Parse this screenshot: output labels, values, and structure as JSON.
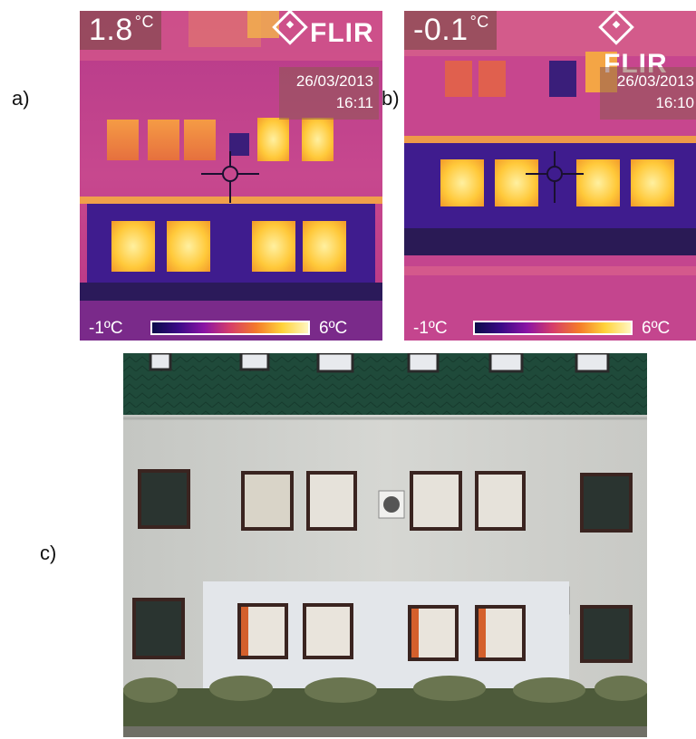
{
  "labels": {
    "a": "a)",
    "b": "b)",
    "c": "c)"
  },
  "thermal_a": {
    "spot_value": "1.8",
    "spot_unit": "°C",
    "brand": "FLIR",
    "date": "26/03/2013",
    "time": "16:11",
    "scale_min": "-1ºC",
    "scale_max": "6ºC"
  },
  "thermal_b": {
    "spot_value": "-0.1",
    "spot_unit": "°C",
    "brand": "FLIR",
    "date": "26/03/2013",
    "time": "16:10",
    "scale_min": "-1ºC",
    "scale_max": "6ºC"
  },
  "colors": {
    "thermal_bg": "#c2418e",
    "thermal_cold": "#3f1c8e",
    "thermal_hot": "#ffd34a",
    "roof": "#1f4a3a",
    "wall": "#cfd0cc",
    "plinth": "#e3e6ea"
  }
}
